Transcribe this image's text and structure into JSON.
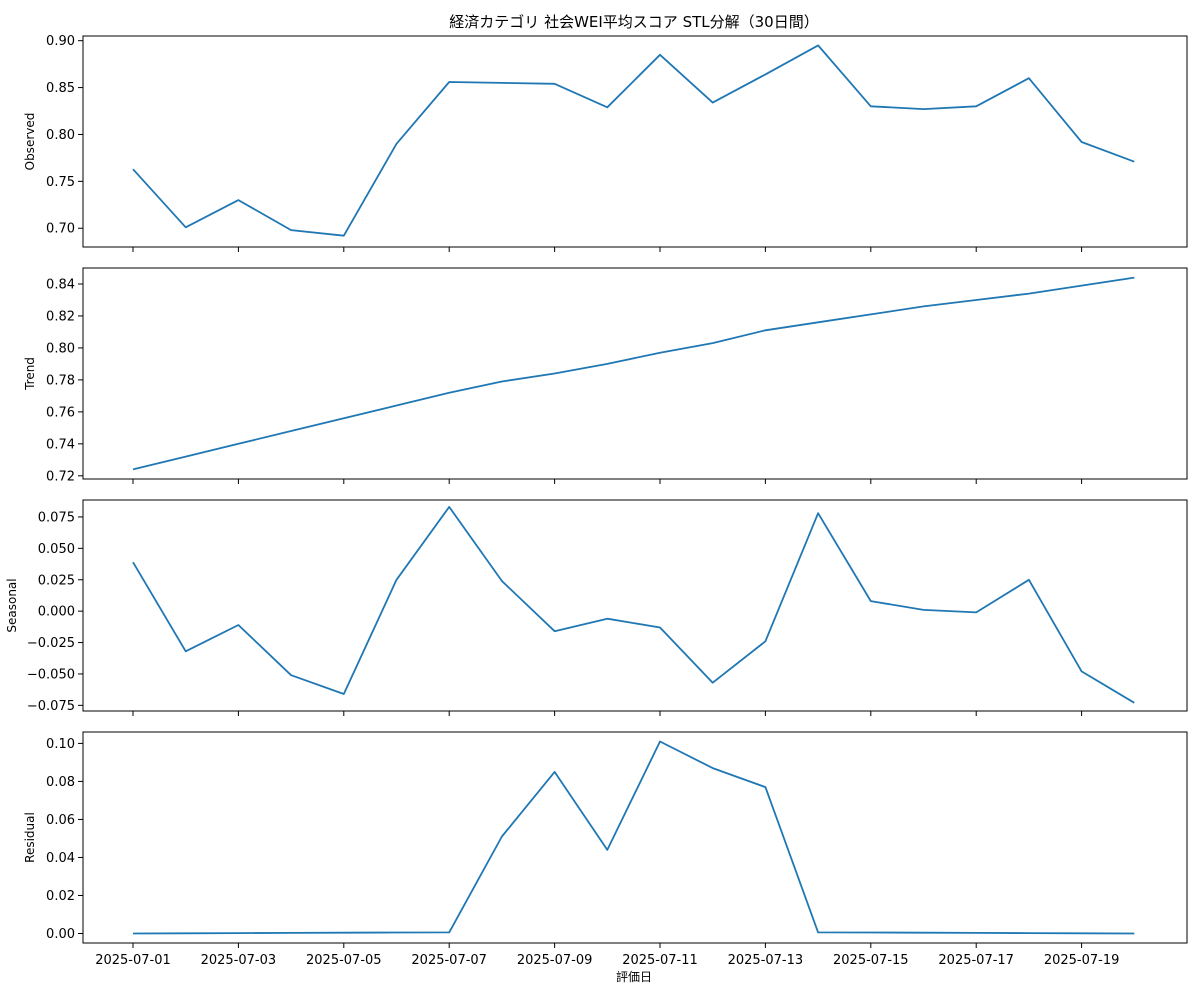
{
  "chart_data": {
    "type": "line",
    "title": "経済カテゴリ 社会WEI平均スコア STL分解（30日間）",
    "xlabel": "評価日",
    "x": [
      "2025-07-01",
      "2025-07-02",
      "2025-07-03",
      "2025-07-04",
      "2025-07-05",
      "2025-07-06",
      "2025-07-07",
      "2025-07-08",
      "2025-07-09",
      "2025-07-10",
      "2025-07-11",
      "2025-07-12",
      "2025-07-13",
      "2025-07-14",
      "2025-07-15",
      "2025-07-16",
      "2025-07-17",
      "2025-07-18",
      "2025-07-19",
      "2025-07-20"
    ],
    "x_tick_labels": [
      "2025-07-01",
      "2025-07-03",
      "2025-07-05",
      "2025-07-07",
      "2025-07-09",
      "2025-07-11",
      "2025-07-13",
      "2025-07-15",
      "2025-07-17",
      "2025-07-19"
    ],
    "line_color": "#1f77b4",
    "panels": [
      {
        "ylabel": "Observed",
        "ylim": [
          0.68,
          0.905
        ],
        "yticks": [
          0.7,
          0.75,
          0.8,
          0.85,
          0.9
        ],
        "ytick_labels": [
          "0.70",
          "0.75",
          "0.80",
          "0.85",
          "0.90"
        ],
        "values": [
          0.763,
          0.701,
          0.73,
          0.698,
          0.692,
          0.79,
          0.856,
          0.855,
          0.854,
          0.829,
          0.885,
          0.834,
          0.864,
          0.895,
          0.83,
          0.827,
          0.83,
          0.86,
          0.792,
          0.771
        ]
      },
      {
        "ylabel": "Trend",
        "ylim": [
          0.718,
          0.85
        ],
        "yticks": [
          0.72,
          0.74,
          0.76,
          0.78,
          0.8,
          0.82,
          0.84
        ],
        "ytick_labels": [
          "0.72",
          "0.74",
          "0.76",
          "0.78",
          "0.80",
          "0.82",
          "0.84"
        ],
        "values": [
          0.724,
          0.732,
          0.74,
          0.748,
          0.756,
          0.764,
          0.772,
          0.779,
          0.784,
          0.79,
          0.797,
          0.803,
          0.811,
          0.816,
          0.821,
          0.826,
          0.83,
          0.834,
          0.839,
          0.844
        ]
      },
      {
        "ylabel": "Seasonal",
        "ylim": [
          -0.0795,
          0.0885
        ],
        "yticks": [
          -0.075,
          -0.05,
          -0.025,
          0.0,
          0.025,
          0.05,
          0.075
        ],
        "ytick_labels": [
          "−0.075",
          "−0.050",
          "−0.025",
          "0.000",
          "0.025",
          "0.050",
          "0.075"
        ],
        "values": [
          0.039,
          -0.032,
          -0.011,
          -0.051,
          -0.066,
          0.025,
          0.083,
          0.024,
          -0.016,
          -0.006,
          -0.013,
          -0.057,
          -0.024,
          0.078,
          0.008,
          0.001,
          -0.001,
          0.025,
          -0.048,
          -0.073
        ]
      },
      {
        "ylabel": "Residual",
        "ylim": [
          -0.005,
          0.106
        ],
        "yticks": [
          0.0,
          0.02,
          0.04,
          0.06,
          0.08,
          0.1
        ],
        "ytick_labels": [
          "0.00",
          "0.02",
          "0.04",
          "0.06",
          "0.08",
          "0.10"
        ],
        "values": [
          0.0,
          0.0001,
          0.0002,
          0.0003,
          0.0004,
          0.0005,
          0.0006,
          0.051,
          0.085,
          0.044,
          0.101,
          0.087,
          0.077,
          0.0006,
          0.0005,
          0.0004,
          0.0003,
          0.0002,
          0.0001,
          0.0
        ]
      }
    ]
  }
}
